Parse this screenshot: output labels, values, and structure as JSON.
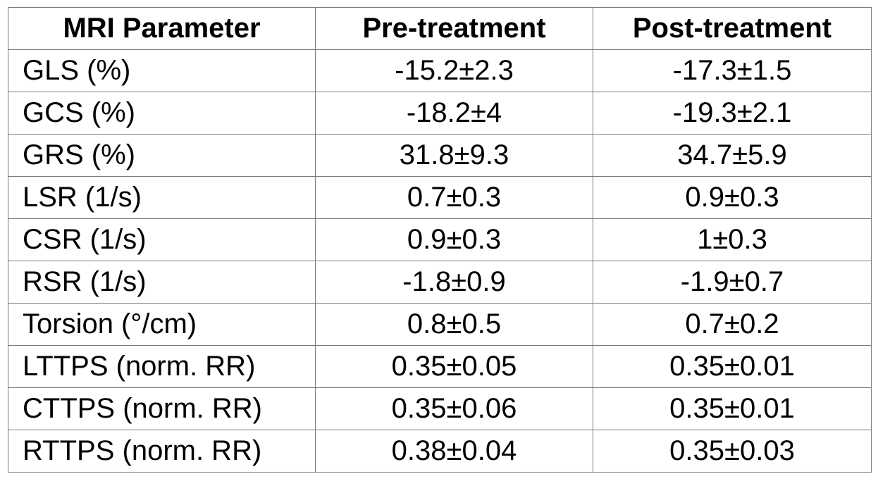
{
  "table": {
    "header": [
      "MRI Parameter",
      "Pre-treatment",
      "Post-treatment"
    ],
    "rows": [
      [
        "GLS (%)",
        "-15.2±2.3",
        "-17.3±1.5"
      ],
      [
        "GCS (%)",
        "-18.2±4",
        "-19.3±2.1"
      ],
      [
        "GRS (%)",
        "31.8±9.3",
        "34.7±5.9"
      ],
      [
        "LSR (1/s)",
        "0.7±0.3",
        "0.9±0.3"
      ],
      [
        "CSR (1/s)",
        "0.9±0.3",
        "1±0.3"
      ],
      [
        "RSR (1/s)",
        "-1.8±0.9",
        "-1.9±0.7"
      ],
      [
        "Torsion (°/cm)",
        "0.8±0.5",
        "0.7±0.2"
      ],
      [
        "LTTPS (norm. RR)",
        "0.35±0.05",
        "0.35±0.01"
      ],
      [
        "CTTPS (norm. RR)",
        "0.35±0.06",
        "0.35±0.01"
      ],
      [
        "RTTPS (norm. RR)",
        "0.38±0.04",
        "0.35±0.03"
      ]
    ]
  }
}
